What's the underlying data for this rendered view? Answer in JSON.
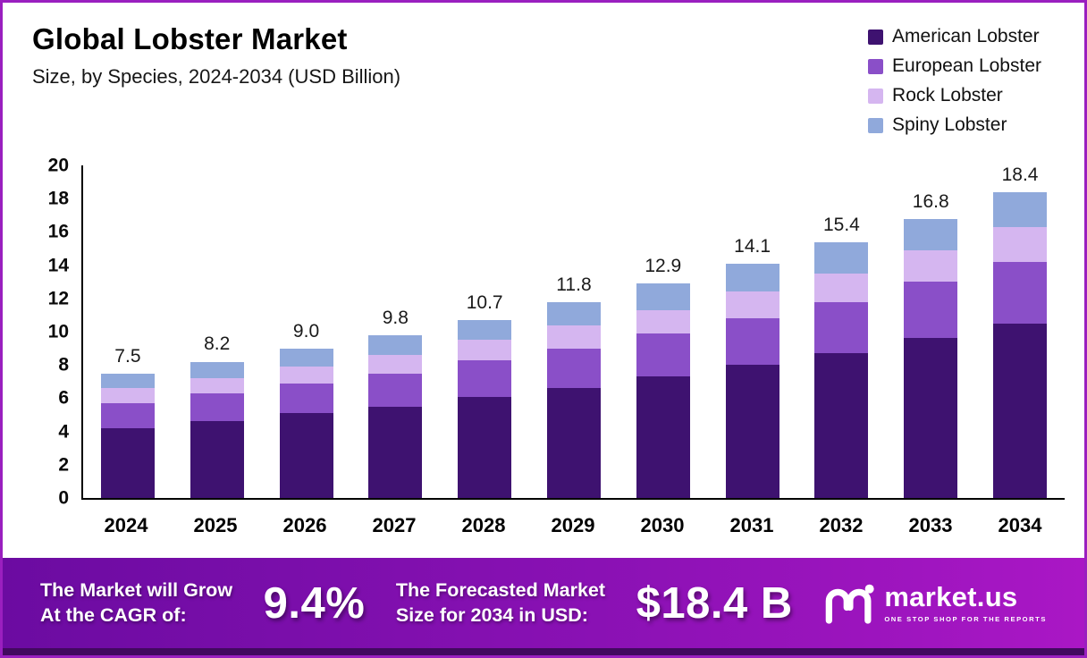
{
  "title": "Global Lobster Market",
  "subtitle": "Size, by Species, 2024-2034 (USD Billion)",
  "legend": [
    {
      "label": "American Lobster",
      "color": "#3e1270"
    },
    {
      "label": "European Lobster",
      "color": "#8a4fc8"
    },
    {
      "label": "Rock Lobster",
      "color": "#d5b6f0"
    },
    {
      "label": "Spiny Lobster",
      "color": "#90a9db"
    }
  ],
  "chart_data": {
    "type": "bar",
    "stacked": true,
    "title": "Global Lobster Market Size, by Species, 2024-2034 (USD Billion)",
    "categories": [
      "2024",
      "2025",
      "2026",
      "2027",
      "2028",
      "2029",
      "2030",
      "2031",
      "2032",
      "2033",
      "2034"
    ],
    "series": [
      {
        "name": "American Lobster",
        "color": "#3e1270",
        "values": [
          4.2,
          4.6,
          5.1,
          5.5,
          6.1,
          6.6,
          7.3,
          8.0,
          8.7,
          9.6,
          10.5
        ]
      },
      {
        "name": "European Lobster",
        "color": "#8a4fc8",
        "values": [
          1.5,
          1.7,
          1.8,
          2.0,
          2.2,
          2.4,
          2.6,
          2.8,
          3.1,
          3.4,
          3.7
        ]
      },
      {
        "name": "Rock Lobster",
        "color": "#d5b6f0",
        "values": [
          0.9,
          0.9,
          1.0,
          1.1,
          1.2,
          1.4,
          1.4,
          1.6,
          1.7,
          1.9,
          2.1
        ]
      },
      {
        "name": "Spiny Lobster",
        "color": "#90a9db",
        "values": [
          0.9,
          1.0,
          1.1,
          1.2,
          1.2,
          1.4,
          1.6,
          1.7,
          1.9,
          1.9,
          2.1
        ]
      }
    ],
    "totals": [
      7.5,
      8.2,
      9.0,
      9.8,
      10.7,
      11.8,
      12.9,
      14.1,
      15.4,
      16.8,
      18.4
    ],
    "xlabel": "",
    "ylabel": "",
    "ylim": [
      0,
      20
    ],
    "yticks": [
      0,
      2,
      4,
      6,
      8,
      10,
      12,
      14,
      16,
      18,
      20
    ],
    "grid": false,
    "legend_position": "top-right"
  },
  "footer": {
    "left_label": "The Market will Grow\nAt the CAGR of:",
    "cagr": "9.4%",
    "right_label": "The Forecasted Market\nSize for 2034 in USD:",
    "forecast": "$18.4 B",
    "brand": "market.us",
    "brand_tagline": "ONE STOP SHOP FOR THE REPORTS"
  }
}
